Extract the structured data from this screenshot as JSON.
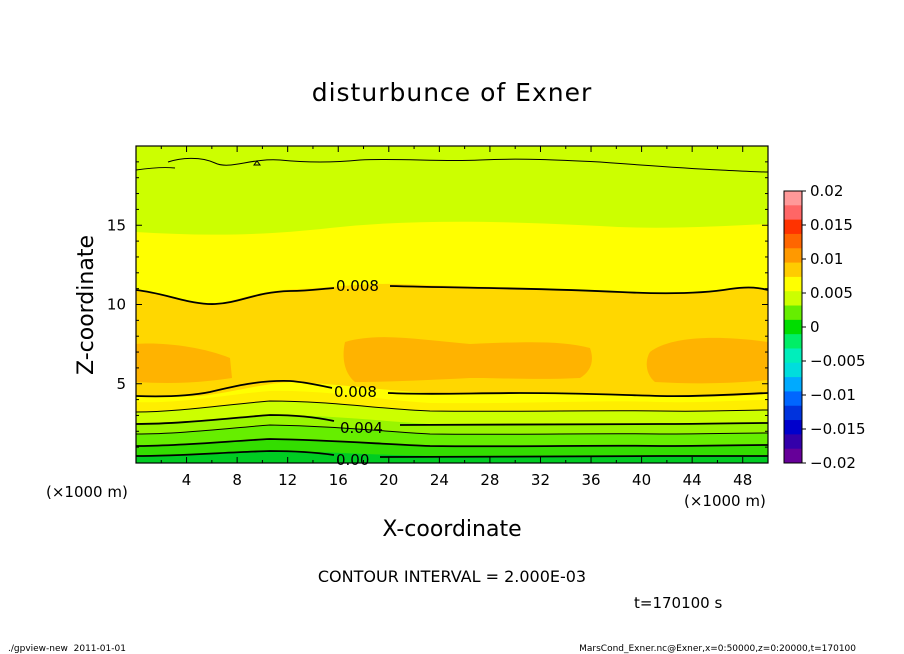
{
  "chart_data": {
    "type": "contour",
    "title": "disturbunce of Exner",
    "xlabel": "X-coordinate",
    "ylabel": "Z-coordinate",
    "x_unit": "(×1000 m)",
    "x_unit_right": "(×1000 m)",
    "xlim": [
      0,
      50
    ],
    "ylim": [
      0,
      20
    ],
    "xticks": [
      "4",
      "8",
      "12",
      "16",
      "20",
      "24",
      "28",
      "32",
      "36",
      "40",
      "44",
      "48"
    ],
    "xtick_values": [
      4,
      8,
      12,
      16,
      20,
      24,
      28,
      32,
      36,
      40,
      44,
      48
    ],
    "yticks": [
      "5",
      "10",
      "15"
    ],
    "ytick_values": [
      5,
      10,
      15
    ],
    "contour_labels": [
      "0.008",
      "0.008",
      "0.004",
      "0.00"
    ],
    "contour_interval_text": "CONTOUR INTERVAL = 2.000E-03",
    "time_text": "t=170100 s",
    "footer_left": "./gpview-new  2011-01-01",
    "footer_right": "MarsCond_Exner.nc@Exner,x=0:50000,z=0:20000,t=170100",
    "colorbar": {
      "labels": [
        "0.02",
        "0.015",
        "0.01",
        "0.005",
        "0",
        "−0.005",
        "−0.01",
        "−0.015",
        "−0.02"
      ],
      "levels": [
        0.02,
        0.015,
        0.01,
        0.005,
        0,
        -0.005,
        -0.01,
        -0.015,
        -0.02
      ],
      "colors_top_to_bottom": [
        "#ff9999",
        "#ff6666",
        "#ff3300",
        "#ff6600",
        "#ff9900",
        "#ffcc00",
        "#ffff00",
        "#ccff00",
        "#66ee00",
        "#00dd00",
        "#00ee66",
        "#00eebb",
        "#00dddd",
        "#00aaff",
        "#0066ff",
        "#0033dd",
        "#0000cc",
        "#3300aa",
        "#660099"
      ]
    },
    "fill_colors": {
      "top": "#ccff00",
      "upper": "#ffff00",
      "mid": "#ffd700",
      "core": "#ffb300",
      "lower": "#ccff00",
      "bottom": "#22dd00"
    }
  }
}
